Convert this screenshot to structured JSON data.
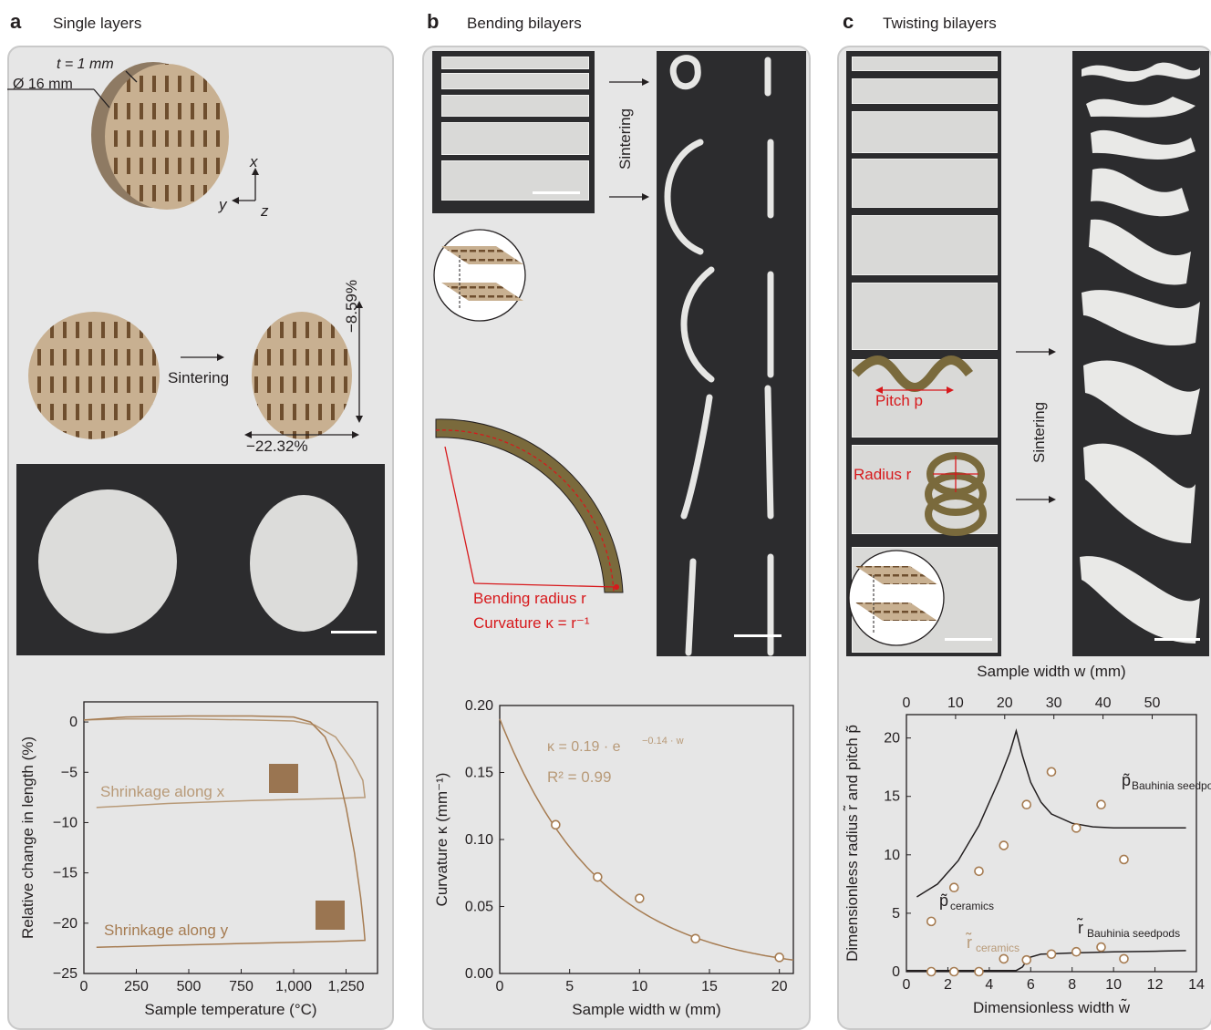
{
  "panel_a": {
    "letter": "a",
    "title": "Single layers",
    "thickness": "t = 1 mm",
    "diameter": "Ø 16 mm",
    "axis_x": "x",
    "axis_y": "y",
    "axis_z": "z",
    "sintering": "Sintering",
    "shrink_x_pct": "−8.59%",
    "shrink_y_pct": "−22.32%"
  },
  "panel_b": {
    "letter": "b",
    "title": "Bending bilayers",
    "sintering": "Sintering",
    "bending_radius": "Bending radius r",
    "curvature_def": "Curvature κ = r⁻¹"
  },
  "panel_c": {
    "letter": "c",
    "title": "Twisting bilayers",
    "pitch": "Pitch p",
    "radius": "Radius r",
    "sintering": "Sintering"
  },
  "colors": {
    "brown": "#a67c52",
    "tan": "#b89a78",
    "dark": "#231f20",
    "red": "#d7191c",
    "panel_bg": "#e6e6e6"
  },
  "chart_data": [
    {
      "type": "line",
      "xlabel": "Sample temperature (°C)",
      "ylabel": "Relative change in length (%)",
      "xlim": [
        0,
        1400
      ],
      "ylim": [
        -25,
        2
      ],
      "xticks": [
        "0",
        "250",
        "500",
        "750",
        "1,000",
        "1,250"
      ],
      "xtick_values": [
        0,
        250,
        500,
        750,
        1000,
        1250
      ],
      "yticks": [
        "0",
        "−5",
        "−10",
        "−15",
        "−20",
        "−25"
      ],
      "ytick_values": [
        0,
        -5,
        -10,
        -15,
        -20,
        -25
      ],
      "annotations": [
        "Shrinkage along x",
        "Shrinkage along y"
      ],
      "series": [
        {
          "name": "Shrinkage along x",
          "x": [
            0,
            200,
            500,
            800,
            1000,
            1100,
            1200,
            1280,
            1330,
            1340,
            1200,
            800,
            400,
            60
          ],
          "y": [
            0.2,
            0.3,
            0.3,
            0.2,
            0.1,
            -0.3,
            -1.5,
            -3.8,
            -5.8,
            -7.5,
            -7.6,
            -7.8,
            -8.1,
            -8.5
          ]
        },
        {
          "name": "Shrinkage along y",
          "x": [
            0,
            200,
            500,
            800,
            1000,
            1080,
            1150,
            1200,
            1250,
            1290,
            1320,
            1335,
            1340,
            1200,
            800,
            400,
            60
          ],
          "y": [
            0.2,
            0.5,
            0.6,
            0.6,
            0.5,
            0.0,
            -1.5,
            -4.0,
            -8.5,
            -13.0,
            -17.5,
            -20.5,
            -21.7,
            -21.8,
            -22.0,
            -22.2,
            -22.4
          ]
        }
      ]
    },
    {
      "type": "scatter",
      "xlabel": "Sample width w (mm)",
      "ylabel": "Curvature κ (mm⁻¹)",
      "xlim": [
        0,
        21
      ],
      "ylim": [
        0,
        0.2
      ],
      "xticks": [
        "0",
        "5",
        "10",
        "15",
        "20"
      ],
      "xtick_values": [
        0,
        5,
        10,
        15,
        20
      ],
      "yticks": [
        "0.00",
        "0.05",
        "0.10",
        "0.15",
        "0.20"
      ],
      "ytick_values": [
        0,
        0.05,
        0.1,
        0.15,
        0.2
      ],
      "fit_equation": "κ = 0.19 · e",
      "fit_exponent": "−0.14 · w",
      "r_squared": "R² = 0.99",
      "fit": {
        "a": 0.19,
        "b": -0.14
      },
      "points": {
        "x": [
          4,
          7,
          10,
          14,
          20
        ],
        "y": [
          0.111,
          0.072,
          0.056,
          0.026,
          0.012
        ]
      }
    },
    {
      "type": "scatter",
      "xlabel": "Dimensionless width w̃",
      "x2label": "Sample width w (mm)",
      "ylabel": "Dimensionless radius r̃ and pitch p̃",
      "xlim": [
        0,
        14
      ],
      "ylim": [
        0,
        22
      ],
      "xticks": [
        "0",
        "2",
        "4",
        "6",
        "8",
        "10",
        "12",
        "14"
      ],
      "xtick_values": [
        0,
        2,
        4,
        6,
        8,
        10,
        12,
        14
      ],
      "x2ticks": [
        "0",
        "10",
        "20",
        "30",
        "40",
        "50"
      ],
      "x2tick_values": [
        0,
        10,
        20,
        30,
        40,
        50
      ],
      "yticks": [
        "0",
        "5",
        "10",
        "15",
        "20"
      ],
      "ytick_values": [
        0,
        5,
        10,
        15,
        20
      ],
      "labels": {
        "p_bauhinia": "p̃",
        "p_bauhinia_sub": "Bauhinia seedpods",
        "p_ceramics": "p̃",
        "p_ceramics_sub": "ceramics",
        "r_bauhinia": "r̃",
        "r_bauhinia_sub": "Bauhinia seedpods",
        "r_ceramics": "r̃",
        "r_ceramics_sub": "ceramics"
      },
      "series": [
        {
          "name": "p̃ Bauhinia seedpods",
          "x": [
            0.5,
            1.5,
            2.5,
            3.5,
            4.5,
            5.0,
            5.3,
            5.6,
            6.0,
            6.5,
            7.0,
            8.0,
            9.0,
            10.0,
            11.0,
            12.0,
            13.5
          ],
          "y": [
            6.4,
            7.5,
            9.5,
            12.5,
            16.5,
            18.8,
            20.6,
            18.5,
            16.2,
            14.5,
            13.5,
            12.7,
            12.4,
            12.3,
            12.3,
            12.3,
            12.3
          ]
        },
        {
          "name": "r̃ Bauhinia seedpods",
          "x": [
            0,
            4.5,
            5.3,
            5.6,
            5.9,
            6.5,
            8.0,
            10.0,
            12.0,
            13.5
          ],
          "y": [
            0.1,
            0.1,
            0.1,
            0.4,
            1.2,
            1.5,
            1.6,
            1.7,
            1.75,
            1.8
          ]
        },
        {
          "name": "p̃ ceramics",
          "x": [
            1.2,
            2.3,
            3.5,
            4.7,
            5.8,
            7.0,
            8.2,
            9.4,
            10.5
          ],
          "y": [
            4.3,
            7.2,
            8.6,
            10.8,
            14.3,
            17.1,
            12.3,
            14.3,
            9.6
          ]
        },
        {
          "name": "r̃ ceramics",
          "x": [
            1.2,
            2.3,
            3.5,
            4.7,
            5.8,
            7.0,
            8.2,
            9.4,
            10.5
          ],
          "y": [
            0.0,
            0.0,
            0.0,
            1.1,
            1.0,
            1.5,
            1.7,
            2.1,
            1.1
          ]
        }
      ]
    }
  ]
}
